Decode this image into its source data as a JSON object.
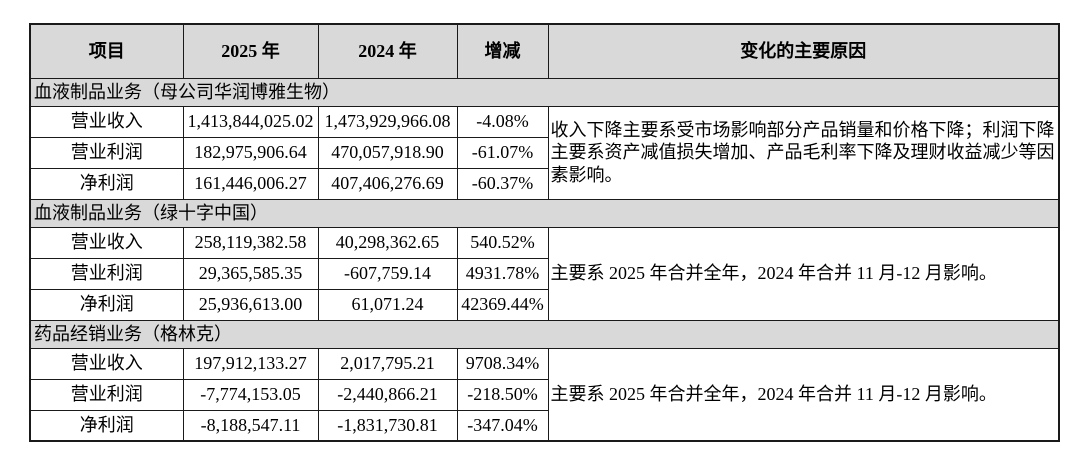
{
  "colors": {
    "background": "#ffffff",
    "header_bg": "#d9d9d9",
    "section_bg": "#d9d9d9",
    "border": "#1a1a1a",
    "text": "#000000"
  },
  "table": {
    "headers": {
      "item": "项目",
      "y2025": "2025 年",
      "y2024": "2024 年",
      "change": "增减",
      "reason": "变化的主要原因"
    },
    "sections": [
      {
        "title": "血液制品业务（母公司华润博雅生物）",
        "reason": "收入下降主要系受市场影响部分产品销量和价格下降；利润下降主要系资产减值损失增加、产品毛利率下降及理财收益减少等因素影响。",
        "rows": [
          {
            "label": "营业收入",
            "y2025": "1,413,844,025.02",
            "y2024": "1,473,929,966.08",
            "change": "-4.08%"
          },
          {
            "label": "营业利润",
            "y2025": "182,975,906.64",
            "y2024": "470,057,918.90",
            "change": "-61.07%"
          },
          {
            "label": "净利润",
            "y2025": "161,446,006.27",
            "y2024": "407,406,276.69",
            "change": "-60.37%"
          }
        ]
      },
      {
        "title": "血液制品业务（绿十字中国）",
        "reason": "主要系 2025 年合并全年，2024 年合并 11 月-12 月影响。",
        "rows": [
          {
            "label": "营业收入",
            "y2025": "258,119,382.58",
            "y2024": "40,298,362.65",
            "change": "540.52%"
          },
          {
            "label": "营业利润",
            "y2025": "29,365,585.35",
            "y2024": "-607,759.14",
            "change": "4931.78%"
          },
          {
            "label": "净利润",
            "y2025": "25,936,613.00",
            "y2024": "61,071.24",
            "change": "42369.44%"
          }
        ]
      },
      {
        "title": "药品经销业务（格林克）",
        "reason": "主要系 2025 年合并全年，2024 年合并 11 月-12 月影响。",
        "rows": [
          {
            "label": "营业收入",
            "y2025": "197,912,133.27",
            "y2024": "2,017,795.21",
            "change": "9708.34%"
          },
          {
            "label": "营业利润",
            "y2025": "-7,774,153.05",
            "y2024": "-2,440,866.21",
            "change": "-218.50%"
          },
          {
            "label": "净利润",
            "y2025": "-8,188,547.11",
            "y2024": "-1,831,730.81",
            "change": "-347.04%"
          }
        ]
      }
    ]
  }
}
